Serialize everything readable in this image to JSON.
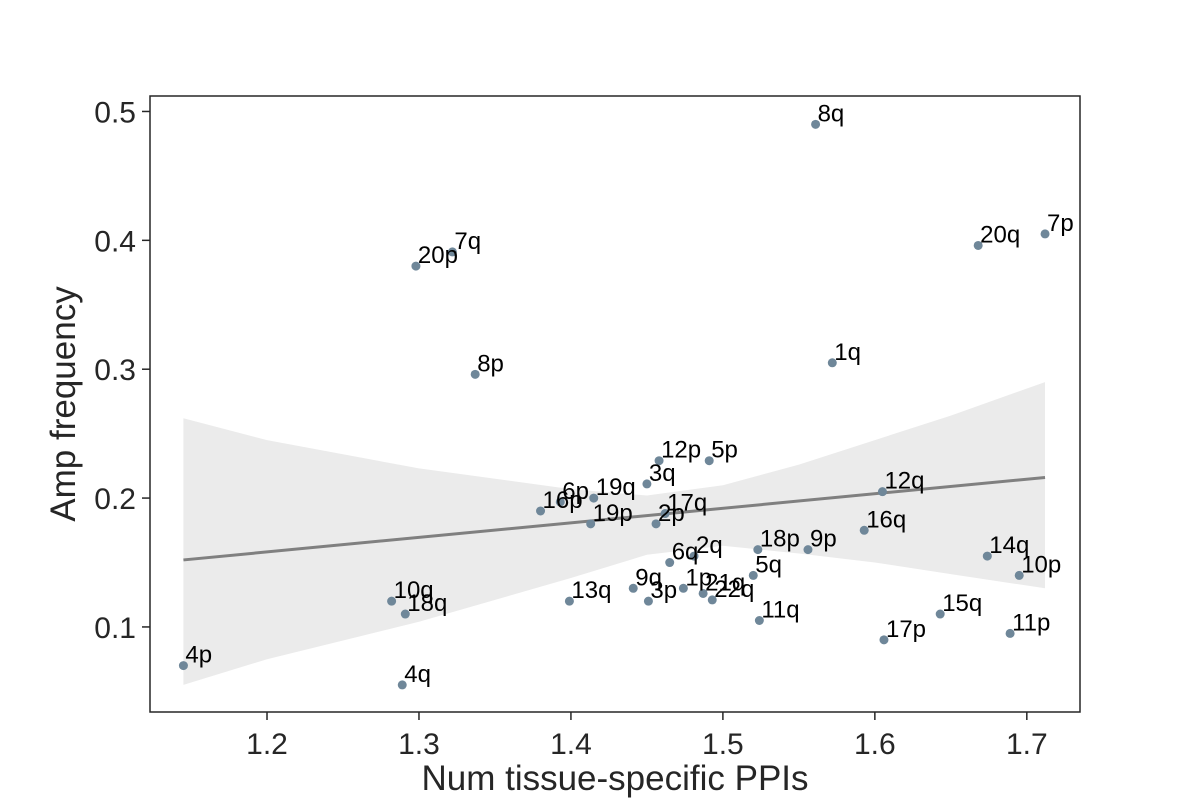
{
  "chart_data": {
    "type": "scatter",
    "xlabel": "Num tissue-specific PPIs",
    "ylabel": "Amp frequency",
    "xlim": [
      1.123,
      1.735
    ],
    "ylim": [
      0.034,
      0.512
    ],
    "xticks": [
      1.2,
      1.3,
      1.4,
      1.5,
      1.6,
      1.7
    ],
    "yticks": [
      0.1,
      0.2,
      0.3,
      0.4,
      0.5
    ],
    "xtick_labels": [
      "1.2",
      "1.3",
      "1.4",
      "1.5",
      "1.6",
      "1.7"
    ],
    "ytick_labels": [
      "0.1",
      "0.2",
      "0.3",
      "0.4",
      "0.5"
    ],
    "grid": false,
    "points": [
      {
        "label": "8q",
        "x": 1.561,
        "y": 0.49
      },
      {
        "label": "7p",
        "x": 1.712,
        "y": 0.405
      },
      {
        "label": "20q",
        "x": 1.668,
        "y": 0.396
      },
      {
        "label": "7q",
        "x": 1.322,
        "y": 0.391
      },
      {
        "label": "20p",
        "x": 1.298,
        "y": 0.38
      },
      {
        "label": "1q",
        "x": 1.572,
        "y": 0.305
      },
      {
        "label": "8p",
        "x": 1.337,
        "y": 0.296
      },
      {
        "label": "12p",
        "x": 1.458,
        "y": 0.229
      },
      {
        "label": "5p",
        "x": 1.491,
        "y": 0.229
      },
      {
        "label": "3q",
        "x": 1.45,
        "y": 0.211
      },
      {
        "label": "12q",
        "x": 1.605,
        "y": 0.205
      },
      {
        "label": "19q",
        "x": 1.415,
        "y": 0.2
      },
      {
        "label": "6p",
        "x": 1.393,
        "y": 0.197
      },
      {
        "label": "16p",
        "x": 1.38,
        "y": 0.19
      },
      {
        "label": "17q",
        "x": 1.462,
        "y": 0.188
      },
      {
        "label": "19p",
        "x": 1.413,
        "y": 0.18
      },
      {
        "label": "2p",
        "x": 1.456,
        "y": 0.18
      },
      {
        "label": "16q",
        "x": 1.593,
        "y": 0.175
      },
      {
        "label": "9p",
        "x": 1.556,
        "y": 0.16
      },
      {
        "label": "18p",
        "x": 1.523,
        "y": 0.16
      },
      {
        "label": "2q",
        "x": 1.481,
        "y": 0.155
      },
      {
        "label": "14q",
        "x": 1.674,
        "y": 0.155
      },
      {
        "label": "6q",
        "x": 1.465,
        "y": 0.15
      },
      {
        "label": "5q",
        "x": 1.52,
        "y": 0.14
      },
      {
        "label": "10p",
        "x": 1.695,
        "y": 0.14
      },
      {
        "label": "9q",
        "x": 1.441,
        "y": 0.13
      },
      {
        "label": "1p",
        "x": 1.474,
        "y": 0.13
      },
      {
        "label": "21q",
        "x": 1.487,
        "y": 0.126
      },
      {
        "label": "22q",
        "x": 1.493,
        "y": 0.121
      },
      {
        "label": "13q",
        "x": 1.399,
        "y": 0.12
      },
      {
        "label": "3p",
        "x": 1.451,
        "y": 0.12
      },
      {
        "label": "10q",
        "x": 1.282,
        "y": 0.12
      },
      {
        "label": "18q",
        "x": 1.291,
        "y": 0.11
      },
      {
        "label": "15q",
        "x": 1.643,
        "y": 0.11
      },
      {
        "label": "11q",
        "x": 1.524,
        "y": 0.105
      },
      {
        "label": "11p",
        "x": 1.689,
        "y": 0.095
      },
      {
        "label": "17p",
        "x": 1.606,
        "y": 0.09
      },
      {
        "label": "4p",
        "x": 1.145,
        "y": 0.07
      },
      {
        "label": "4q",
        "x": 1.289,
        "y": 0.055
      }
    ],
    "regression": {
      "x": [
        1.145,
        1.712
      ],
      "y": [
        0.152,
        0.216
      ],
      "ci_upper": [
        [
          1.145,
          0.262
        ],
        [
          1.2,
          0.245
        ],
        [
          1.3,
          0.223
        ],
        [
          1.4,
          0.207
        ],
        [
          1.45,
          0.202
        ],
        [
          1.5,
          0.21
        ],
        [
          1.55,
          0.226
        ],
        [
          1.6,
          0.245
        ],
        [
          1.65,
          0.264
        ],
        [
          1.712,
          0.29
        ]
      ],
      "ci_lower": [
        [
          1.145,
          0.055
        ],
        [
          1.2,
          0.075
        ],
        [
          1.3,
          0.104
        ],
        [
          1.4,
          0.138
        ],
        [
          1.45,
          0.156
        ],
        [
          1.5,
          0.163
        ],
        [
          1.55,
          0.157
        ],
        [
          1.6,
          0.15
        ],
        [
          1.65,
          0.141
        ],
        [
          1.712,
          0.13
        ]
      ]
    },
    "colors": {
      "point": "#6f8799",
      "line": "#808080",
      "band": "#ebebeb",
      "axis": "#262626"
    }
  }
}
